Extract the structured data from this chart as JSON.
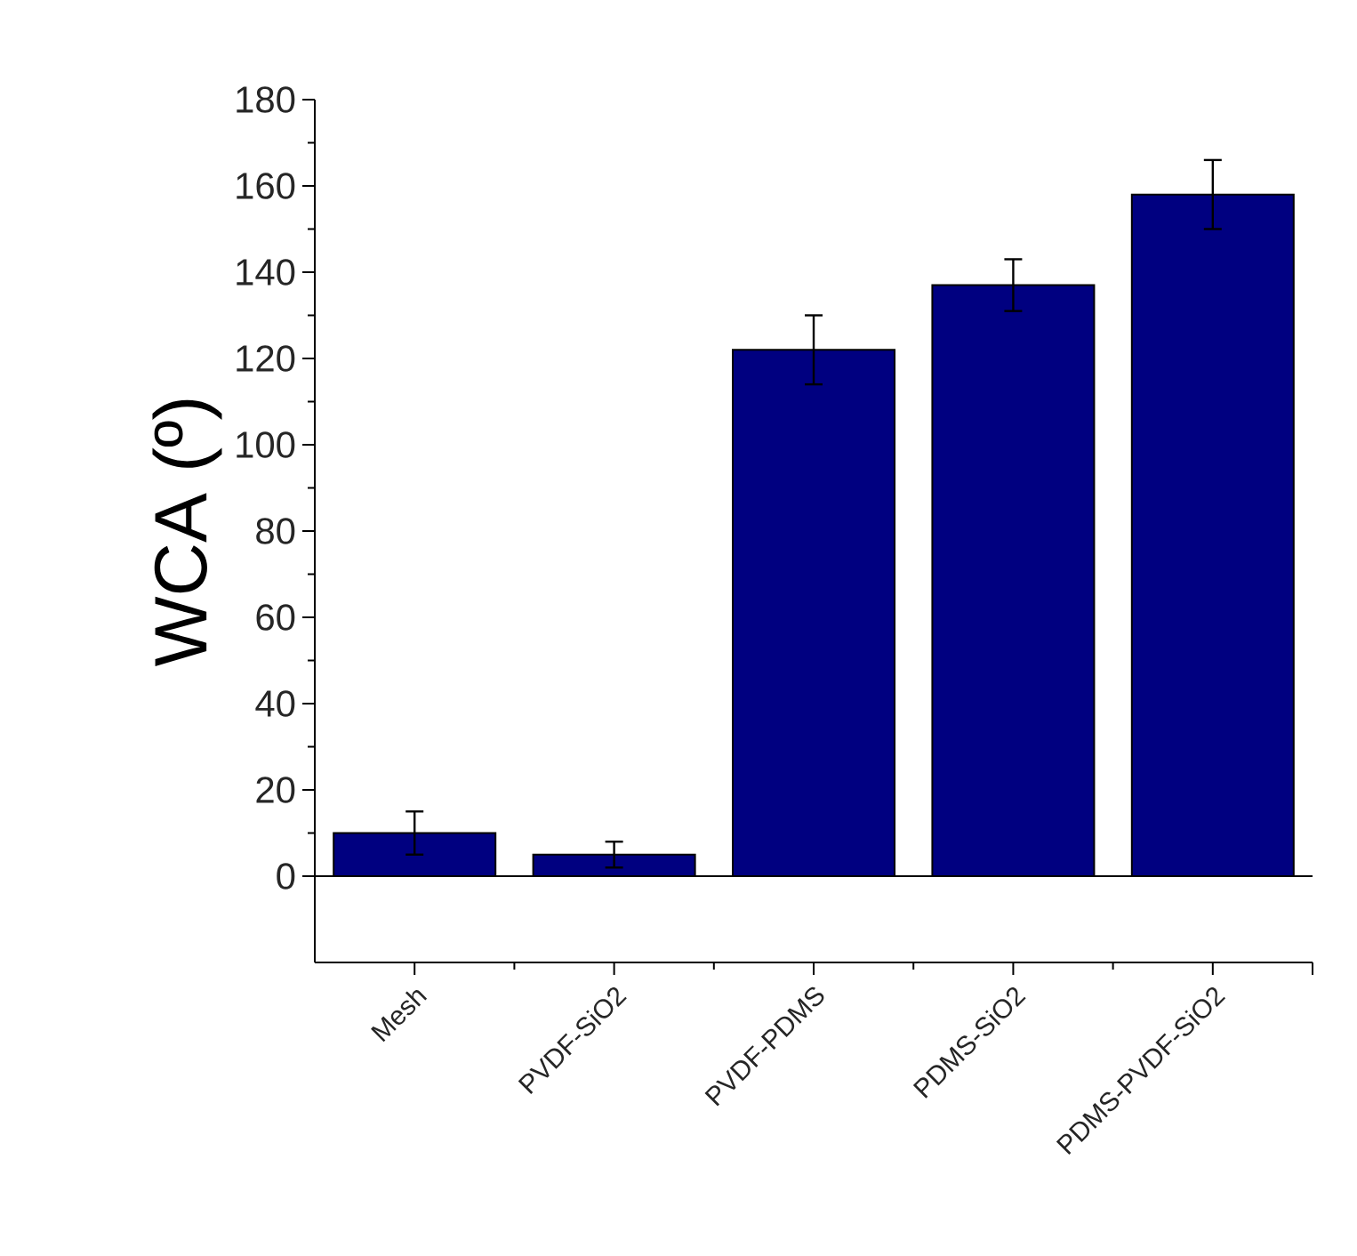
{
  "chart_data": {
    "type": "bar",
    "ylabel": "WCA (º)",
    "categories": [
      "Mesh",
      "PVDF-SiO2",
      "PVDF-PDMS",
      "PDMS-SiO2",
      "PDMS-PVDF-SiO2"
    ],
    "values": [
      10,
      5,
      122,
      137,
      158
    ],
    "errors": [
      5,
      3,
      8,
      6,
      8
    ],
    "color": "#000080",
    "ylim": [
      -20,
      180
    ],
    "yticks": [
      0,
      20,
      40,
      60,
      80,
      100,
      120,
      140,
      160,
      180
    ],
    "ref_lines": [
      {
        "axis": "y",
        "value": 0,
        "color": "#000000"
      }
    ],
    "grid": false
  }
}
